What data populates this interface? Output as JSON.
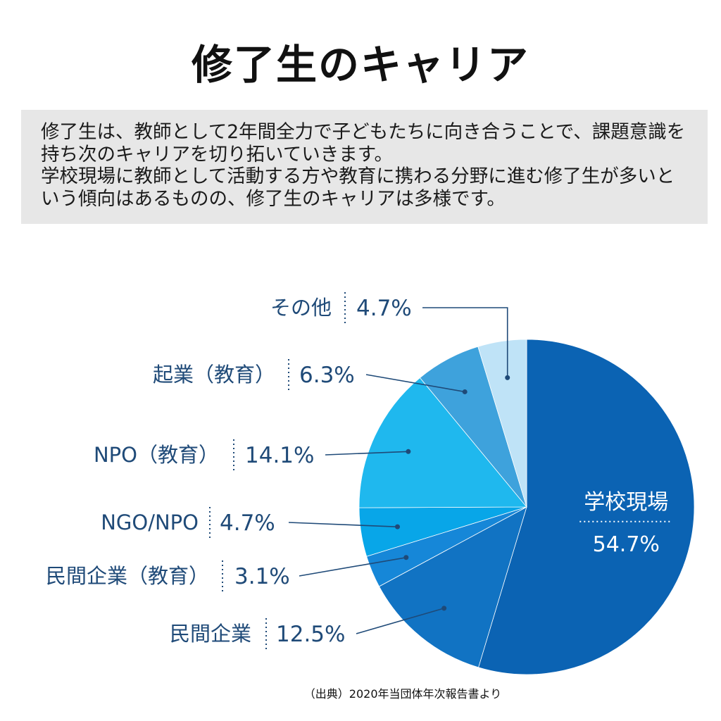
{
  "title": "修了生のキャリア",
  "intro": {
    "line1": "修了生は、教師として2年間全力で子どもたちに向き合うことで、課題意識を持ち次のキャリアを切り拓いていきます。",
    "line2": "学校現場に教師として活動する方や教育に携わる分野に進む修了生が多いという傾向はあるものの、修了生のキャリアは多様です。"
  },
  "source": "（出典）2020年当団体年次報告書より",
  "chart_data": {
    "type": "pie",
    "title": "",
    "start": "12 o'clock",
    "direction": "clockwise",
    "slices": [
      {
        "label": "学校現場",
        "pct_label": "54.7%",
        "value": 54.7,
        "color": "#0b63b3"
      },
      {
        "label": "民間企業",
        "pct_label": "12.5%",
        "value": 12.5,
        "color": "#1173c3"
      },
      {
        "label": "民間企業（教育）",
        "pct_label": "3.1%",
        "value": 3.1,
        "color": "#1687d8"
      },
      {
        "label": "NGO/NPO",
        "pct_label": "4.7%",
        "value": 4.7,
        "color": "#08a6e8"
      },
      {
        "label": "NPO（教育）",
        "pct_label": "14.1%",
        "value": 14.1,
        "color": "#1fb8ee"
      },
      {
        "label": "起業（教育）",
        "pct_label": "6.3%",
        "value": 6.3,
        "color": "#3ea2dc"
      },
      {
        "label": "その他",
        "pct_label": "4.7%",
        "value": 4.7,
        "color": "#bfe3f7"
      }
    ]
  }
}
